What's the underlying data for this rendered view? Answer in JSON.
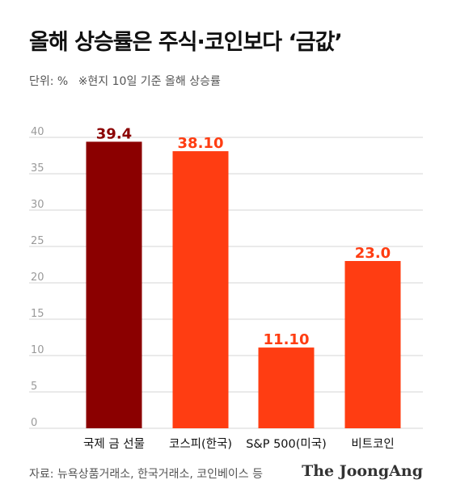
{
  "title": "올해 상승률은 주식·코인보다 ‘금값’",
  "unit_label": "단위: %",
  "note": "※현지 10일 기준 올해 상승률",
  "source": "자료: 뉴욕상품거래소, 한국거래소, 코인베이스 등",
  "brand": "The JoongAng",
  "colors": {
    "highlight": "#8b0000",
    "bar": "#ff3d12",
    "grid": "#d6d6d6",
    "tick": "#9a9a9a"
  },
  "chart_data": {
    "type": "bar",
    "title": "올해 상승률은 주식·코인보다 ‘금값’",
    "xlabel": "",
    "ylabel": "",
    "categories": [
      "국제 금 선물",
      "코스피(한국)",
      "S&P 500(미국)",
      "비트코인"
    ],
    "values": [
      39.4,
      38.1,
      11.1,
      23.0
    ],
    "value_labels": [
      "39.4",
      "38.10",
      "11.10",
      "23.0"
    ],
    "highlight_index": 0,
    "ylim": [
      0,
      40
    ],
    "yticks": [
      0,
      5,
      10,
      15,
      20,
      25,
      30,
      35,
      40
    ],
    "grid": true,
    "legend": "none"
  }
}
